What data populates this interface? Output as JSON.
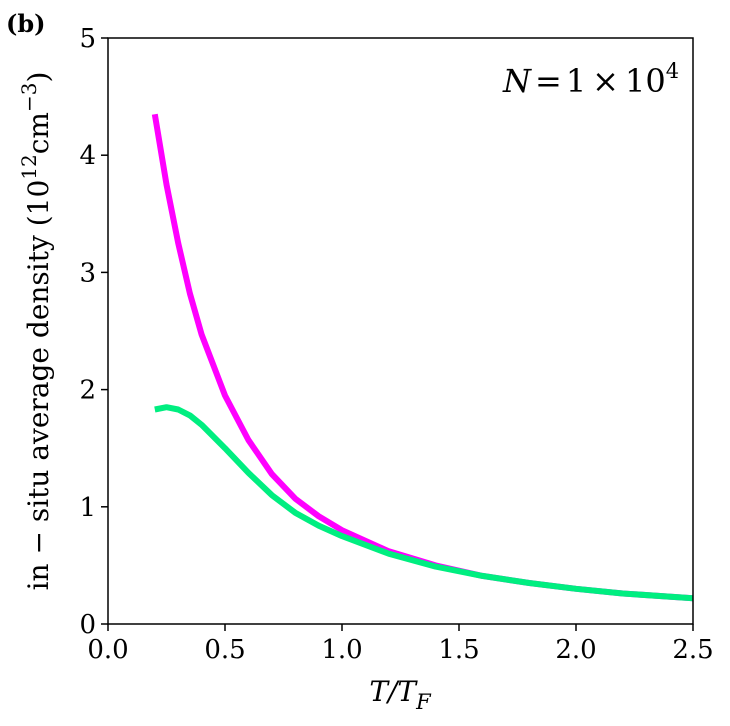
{
  "chart_data": {
    "type": "line",
    "panel_label": "(b)",
    "annotation": {
      "prefix": "N",
      "equals": "=",
      "mantissa": "1",
      "times": "×",
      "base": "10",
      "exponent": "4"
    },
    "xlabel": {
      "main": "T/T",
      "subscript": "F"
    },
    "ylabel": {
      "main": "in − situ average density (10",
      "exp1": "12",
      "middle": "cm",
      "exp2": "−3",
      "close": ")"
    },
    "xlim": [
      0.0,
      2.5
    ],
    "ylim": [
      0,
      5
    ],
    "xticks": [
      {
        "value": 0.0,
        "label": "0.0"
      },
      {
        "value": 0.5,
        "label": "0.5"
      },
      {
        "value": 1.0,
        "label": "1.0"
      },
      {
        "value": 1.5,
        "label": "1.5"
      },
      {
        "value": 2.0,
        "label": "2.0"
      },
      {
        "value": 2.5,
        "label": "2.5"
      }
    ],
    "yticks": [
      {
        "value": 0,
        "label": "0"
      },
      {
        "value": 1,
        "label": "1"
      },
      {
        "value": 2,
        "label": "2"
      },
      {
        "value": 3,
        "label": "3"
      },
      {
        "value": 4,
        "label": "4"
      },
      {
        "value": 5,
        "label": "5"
      }
    ],
    "grid": false,
    "series": [
      {
        "color": "#ff00ff",
        "x": [
          0.2,
          0.25,
          0.3,
          0.35,
          0.4,
          0.5,
          0.6,
          0.7,
          0.8,
          0.9,
          1.0,
          1.2,
          1.4,
          1.6,
          1.8,
          2.0,
          2.2,
          2.5
        ],
        "y": [
          4.35,
          3.75,
          3.25,
          2.82,
          2.47,
          1.95,
          1.57,
          1.28,
          1.07,
          0.92,
          0.8,
          0.62,
          0.5,
          0.41,
          0.35,
          0.3,
          0.26,
          0.22
        ]
      },
      {
        "color": "#00ee80",
        "x": [
          0.2,
          0.25,
          0.3,
          0.35,
          0.4,
          0.5,
          0.6,
          0.7,
          0.8,
          0.9,
          1.0,
          1.2,
          1.4,
          1.6,
          1.8,
          2.0,
          2.2,
          2.5
        ],
        "y": [
          1.83,
          1.85,
          1.83,
          1.78,
          1.7,
          1.5,
          1.29,
          1.1,
          0.95,
          0.84,
          0.75,
          0.6,
          0.49,
          0.41,
          0.35,
          0.3,
          0.26,
          0.22
        ]
      }
    ]
  }
}
